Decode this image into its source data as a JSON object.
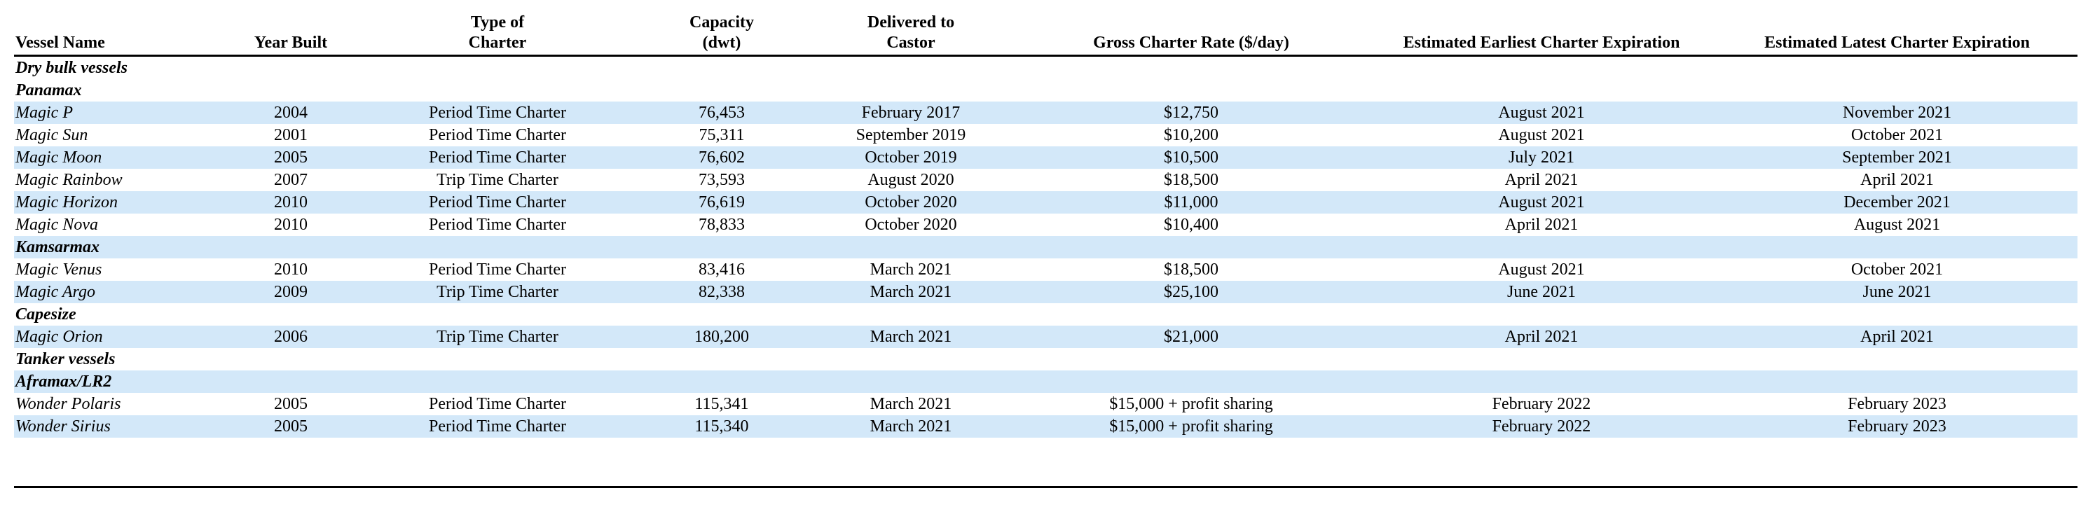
{
  "headers": [
    "Vessel Name",
    "Year Built",
    "Type of\nCharter",
    "Capacity\n(dwt)",
    "Delivered to\nCastor",
    "Gross Charter Rate ($/day)",
    "Estimated Earliest Charter Expiration",
    "Estimated Latest Charter Expiration"
  ],
  "rows": [
    {
      "kind": "group",
      "label": "Dry bulk vessels"
    },
    {
      "kind": "group",
      "label": "Panamax"
    },
    {
      "kind": "vessel",
      "shaded": true,
      "cells": [
        "Magic P",
        "2004",
        "Period Time Charter",
        "76,453",
        "February 2017",
        "$12,750",
        "August 2021",
        "November 2021"
      ]
    },
    {
      "kind": "vessel",
      "shaded": false,
      "cells": [
        "Magic Sun",
        "2001",
        "Period Time Charter",
        "75,311",
        "September 2019",
        "$10,200",
        "August 2021",
        "October 2021"
      ]
    },
    {
      "kind": "vessel",
      "shaded": true,
      "cells": [
        "Magic Moon",
        "2005",
        "Period Time Charter",
        "76,602",
        "October 2019",
        "$10,500",
        "July 2021",
        "September 2021"
      ]
    },
    {
      "kind": "vessel",
      "shaded": false,
      "cells": [
        "Magic Rainbow",
        "2007",
        "Trip Time Charter",
        "73,593",
        "August 2020",
        "$18,500",
        "April 2021",
        "April 2021"
      ]
    },
    {
      "kind": "vessel",
      "shaded": true,
      "cells": [
        "Magic Horizon",
        "2010",
        "Period Time Charter",
        "76,619",
        "October 2020",
        "$11,000",
        "August 2021",
        "December 2021"
      ]
    },
    {
      "kind": "vessel",
      "shaded": false,
      "cells": [
        "Magic Nova",
        "2010",
        "Period Time Charter",
        "78,833",
        "October 2020",
        "$10,400",
        "April 2021",
        "August 2021"
      ]
    },
    {
      "kind": "group",
      "shaded": true,
      "label": "Kamsarmax"
    },
    {
      "kind": "vessel",
      "shaded": false,
      "cells": [
        "Magic Venus",
        "2010",
        "Period Time Charter",
        "83,416",
        "March 2021",
        "$18,500",
        "August 2021",
        "October 2021"
      ]
    },
    {
      "kind": "vessel",
      "shaded": true,
      "cells": [
        "Magic Argo",
        "2009",
        "Trip Time Charter",
        "82,338",
        "March 2021",
        "$25,100",
        "June 2021",
        "June 2021"
      ]
    },
    {
      "kind": "group",
      "shaded": false,
      "label": "Capesize"
    },
    {
      "kind": "vessel",
      "shaded": true,
      "cells": [
        "Magic Orion",
        "2006",
        "Trip Time Charter",
        "180,200",
        "March 2021",
        "$21,000",
        "April 2021",
        "April 2021"
      ]
    },
    {
      "kind": "group",
      "shaded": false,
      "label": "Tanker vessels"
    },
    {
      "kind": "group",
      "shaded": true,
      "label": "Aframax/LR2"
    },
    {
      "kind": "vessel",
      "shaded": false,
      "cells": [
        "Wonder Polaris",
        "2005",
        "Period Time Charter",
        "115,341",
        "March 2021",
        "$15,000 + profit sharing",
        "February 2022",
        "February 2023"
      ]
    },
    {
      "kind": "vessel",
      "shaded": true,
      "cells": [
        "Wonder Sirius",
        "2005",
        "Period Time Charter",
        "115,340",
        "March 2021",
        "$15,000 + profit sharing",
        "February 2022",
        "February 2023"
      ]
    }
  ],
  "colors": {
    "row_shade": "#d3e8f9",
    "rule": "#000000"
  }
}
